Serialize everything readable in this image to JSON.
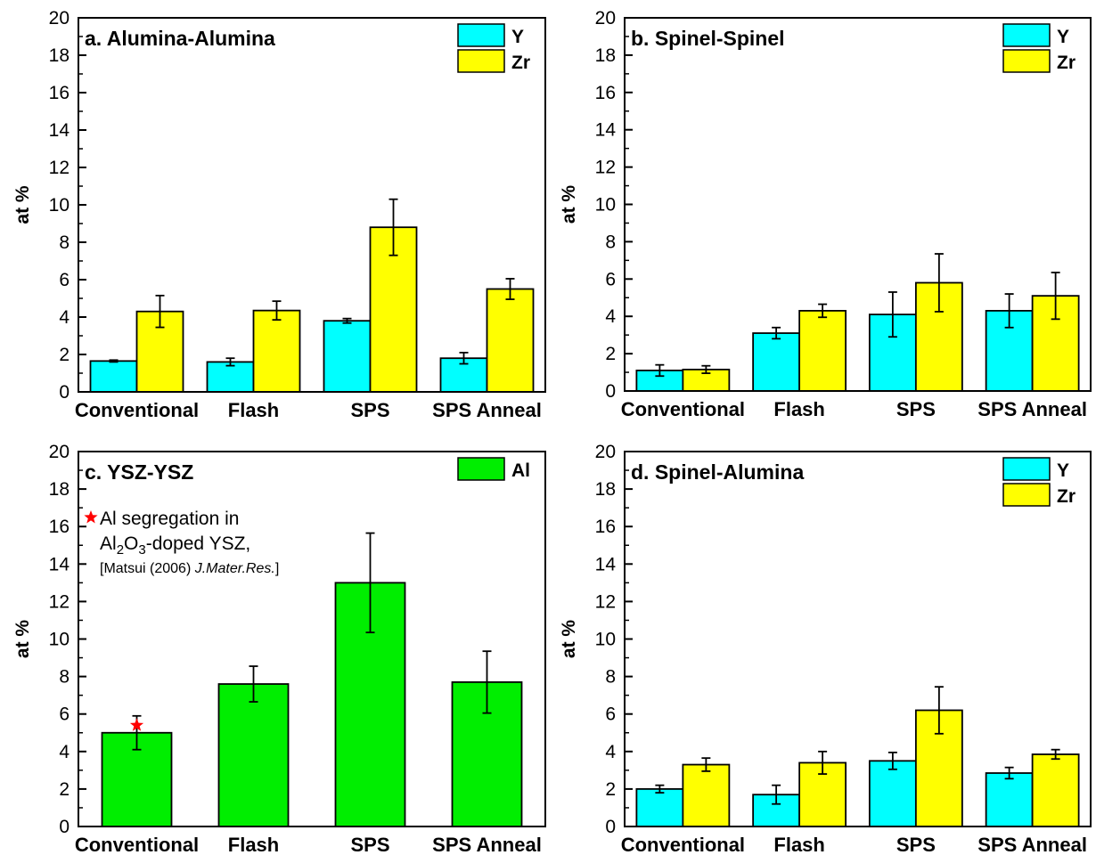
{
  "colors": {
    "Y": "#00FFFF",
    "Zr": "#FFFF00",
    "Al": "#00EE00",
    "star": "#FF0000"
  },
  "chart_data": [
    {
      "type": "bar",
      "title": "a. Alumina-Alumina",
      "ylabel": "at %",
      "xlabel": "",
      "ylim": [
        0,
        20
      ],
      "yticks": [
        "0",
        "2",
        "4",
        "6",
        "8",
        "10",
        "12",
        "14",
        "16",
        "18",
        "20"
      ],
      "categories": [
        "Conventional",
        "Flash",
        "SPS",
        "SPS Anneal"
      ],
      "legend_position": "top-right",
      "series": [
        {
          "name": "Y",
          "color_key": "Y",
          "values": [
            1.65,
            1.6,
            3.8,
            1.8
          ],
          "errors": [
            0.05,
            0.2,
            0.12,
            0.3
          ]
        },
        {
          "name": "Zr",
          "color_key": "Zr",
          "values": [
            4.3,
            4.35,
            8.8,
            5.5
          ],
          "errors": [
            0.85,
            0.5,
            1.5,
            0.55
          ]
        }
      ]
    },
    {
      "type": "bar",
      "title": "b. Spinel-Spinel",
      "ylabel": "at %",
      "xlabel": "",
      "ylim": [
        0,
        20
      ],
      "yticks": [
        "0",
        "2",
        "4",
        "6",
        "8",
        "10",
        "12",
        "14",
        "16",
        "18",
        "20"
      ],
      "categories": [
        "Conventional",
        "Flash",
        "SPS",
        "SPS Anneal"
      ],
      "legend_position": "top-right",
      "series": [
        {
          "name": "Y",
          "color_key": "Y",
          "values": [
            1.1,
            3.1,
            4.1,
            4.3
          ],
          "errors": [
            0.3,
            0.3,
            1.2,
            0.9
          ]
        },
        {
          "name": "Zr",
          "color_key": "Zr",
          "values": [
            1.15,
            4.3,
            5.8,
            5.1
          ],
          "errors": [
            0.2,
            0.35,
            1.55,
            1.25
          ]
        }
      ]
    },
    {
      "type": "bar",
      "title": "c. YSZ-YSZ",
      "ylabel": "at %",
      "xlabel": "",
      "ylim": [
        0,
        20
      ],
      "yticks": [
        "0",
        "2",
        "4",
        "6",
        "8",
        "10",
        "12",
        "14",
        "16",
        "18",
        "20"
      ],
      "categories": [
        "Conventional",
        "Flash",
        "SPS",
        "SPS Anneal"
      ],
      "legend_position": "top-right",
      "series": [
        {
          "name": "Al",
          "color_key": "Al",
          "values": [
            5.0,
            7.6,
            13.0,
            7.7
          ],
          "errors": [
            0.9,
            0.95,
            2.65,
            1.65
          ]
        }
      ],
      "marker": {
        "category": "Conventional",
        "value": 5.4
      },
      "annotation": {
        "line1": "Al segregation in",
        "line2_a": "Al",
        "line2_sub1": "2",
        "line2_b": "O",
        "line2_sub2": "3",
        "line2_c": "-doped YSZ,",
        "line3_a": "[Matsui (2006) ",
        "line3_b": "J.Mater.Res.",
        "line3_c": "]"
      }
    },
    {
      "type": "bar",
      "title": "d. Spinel-Alumina",
      "ylabel": "at %",
      "xlabel": "",
      "ylim": [
        0,
        20
      ],
      "yticks": [
        "0",
        "2",
        "4",
        "6",
        "8",
        "10",
        "12",
        "14",
        "16",
        "18",
        "20"
      ],
      "categories": [
        "Conventional",
        "Flash",
        "SPS",
        "SPS Anneal"
      ],
      "legend_position": "top-right",
      "series": [
        {
          "name": "Y",
          "color_key": "Y",
          "values": [
            2.0,
            1.7,
            3.5,
            2.85
          ],
          "errors": [
            0.2,
            0.5,
            0.45,
            0.3
          ]
        },
        {
          "name": "Zr",
          "color_key": "Zr",
          "values": [
            3.3,
            3.4,
            6.2,
            3.85
          ],
          "errors": [
            0.35,
            0.6,
            1.25,
            0.25
          ]
        }
      ]
    }
  ]
}
